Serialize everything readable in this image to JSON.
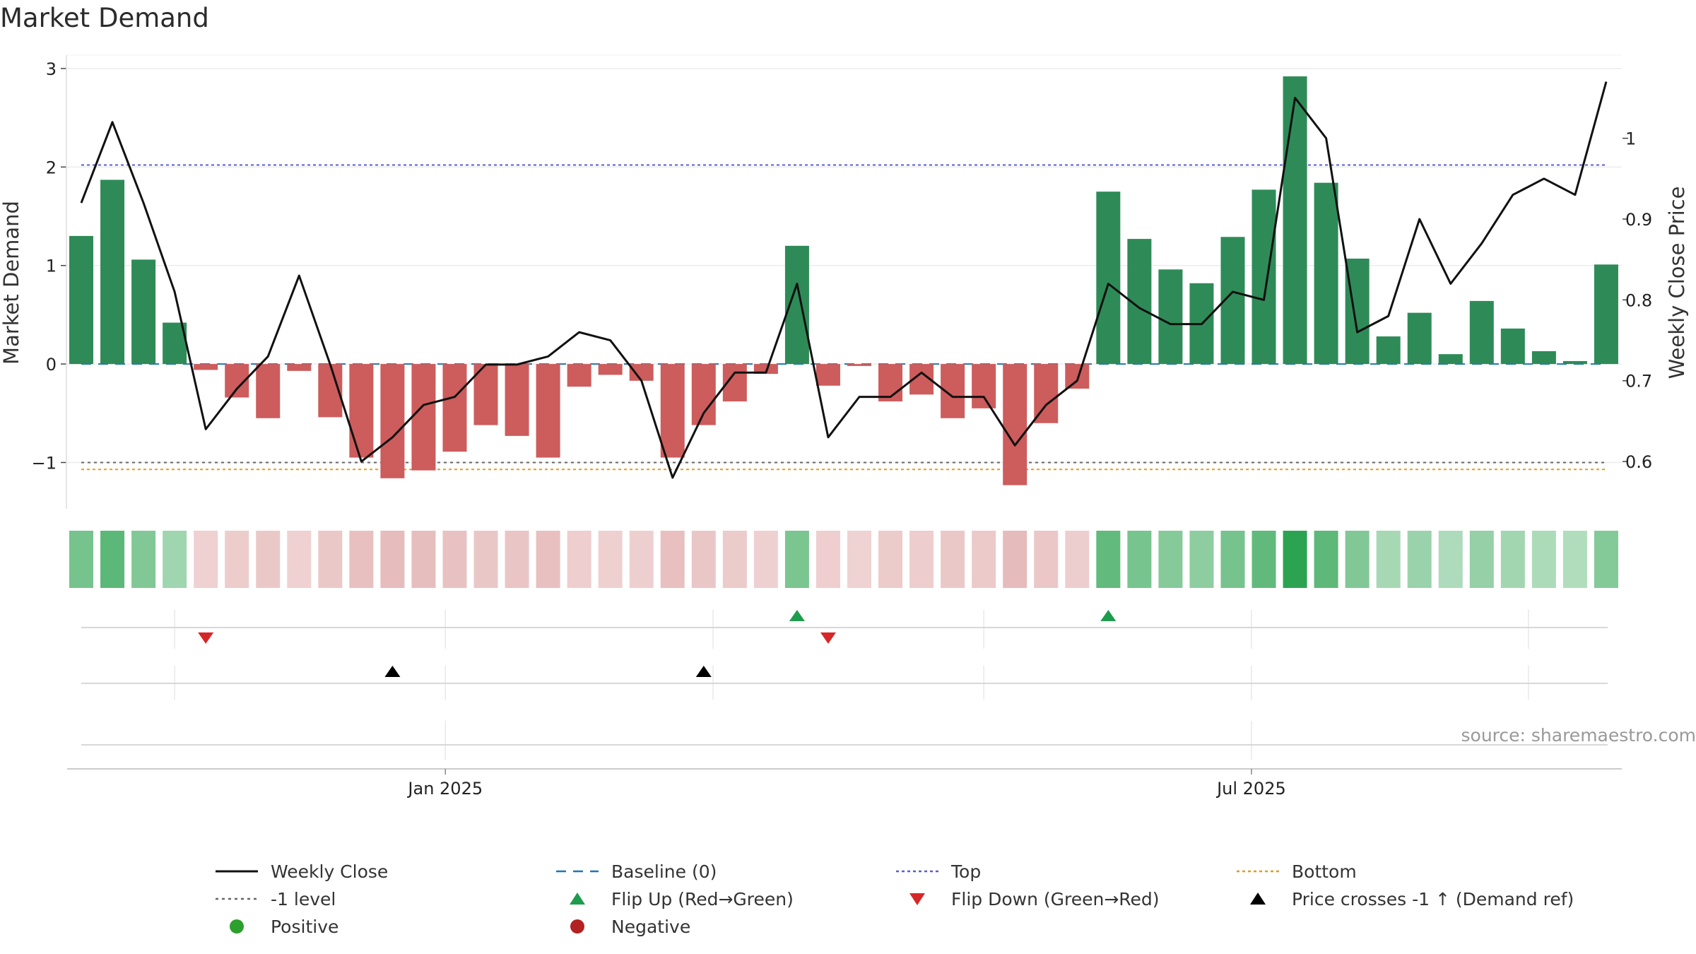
{
  "title": "Market Demand",
  "source": "source: sharemaestro.com",
  "chart_data": {
    "type": "bar",
    "x_ticks": [
      {
        "label": "Jan 2025",
        "week": 11.7
      },
      {
        "label": "Jul 2025",
        "week": 37.6
      }
    ],
    "weeks": 51,
    "demand": [
      1.3,
      1.87,
      1.06,
      0.42,
      -0.06,
      -0.34,
      -0.55,
      -0.07,
      -0.54,
      -0.95,
      -1.16,
      -1.08,
      -0.89,
      -0.62,
      -0.73,
      -0.95,
      -0.23,
      -0.11,
      -0.17,
      -0.95,
      -0.62,
      -0.38,
      -0.1,
      1.2,
      -0.22,
      -0.02,
      -0.38,
      -0.31,
      -0.55,
      -0.45,
      -1.23,
      -0.6,
      -0.25,
      1.75,
      1.27,
      0.96,
      0.82,
      1.29,
      1.77,
      2.92,
      1.84,
      1.07,
      0.28,
      0.52,
      0.1,
      0.64,
      0.36,
      0.13,
      0.03,
      1.01
    ],
    "close": [
      0.92,
      1.02,
      0.92,
      0.81,
      0.64,
      0.69,
      0.73,
      0.83,
      0.72,
      0.6,
      0.63,
      0.67,
      0.68,
      0.72,
      0.72,
      0.73,
      0.76,
      0.75,
      0.7,
      0.58,
      0.66,
      0.71,
      0.71,
      0.82,
      0.63,
      0.68,
      0.68,
      0.71,
      0.68,
      0.68,
      0.62,
      0.67,
      0.7,
      0.82,
      0.79,
      0.77,
      0.77,
      0.81,
      0.8,
      1.05,
      1.0,
      0.76,
      0.78,
      0.9,
      0.82,
      0.87,
      0.93,
      0.95,
      0.93,
      1.07
    ],
    "left_axis": {
      "label": "Market Demand",
      "ylim": [
        -1.47,
        3.1
      ],
      "ticks": [
        -1,
        0,
        1,
        2,
        3
      ]
    },
    "right_axis": {
      "label": "Weekly Close Price",
      "ylim": [
        0.5415,
        1.0985
      ],
      "ticks": [
        0.6,
        0.7,
        0.8,
        0.9,
        1
      ]
    },
    "levels": {
      "baseline": 0,
      "top": 2.02,
      "bottom": -1.07,
      "minus_one": -1
    },
    "flip_up_weeks": [
      23,
      33
    ],
    "flip_down_weeks": [
      4,
      24
    ],
    "price_cross_weeks": [
      10,
      20
    ],
    "colors": {
      "positive_bar": "#2e8b57",
      "negative_bar": "#cd5c5c",
      "close_line": "#111111",
      "baseline": "#1f77b4",
      "top": "#5b5bd6",
      "bottom": "#e69a1a",
      "minus_one": "#666666",
      "flip_up": "#1e9c4e",
      "flip_down": "#d62728",
      "price_cross": "#000000",
      "positive_dot": "#2ca02c",
      "negative_dot": "#b22222"
    },
    "legend": [
      {
        "label": "Weekly Close",
        "kind": "line",
        "color": "#111111",
        "dash": ""
      },
      {
        "label": "Baseline (0)",
        "kind": "line",
        "color": "#1f77b4",
        "dash": "14 10"
      },
      {
        "label": "Top",
        "kind": "line",
        "color": "#5b5bd6",
        "dash": "4 4"
      },
      {
        "label": "Bottom",
        "kind": "line",
        "color": "#e69a1a",
        "dash": "4 4"
      },
      {
        "label": "-1 level",
        "kind": "line",
        "color": "#666666",
        "dash": "4 5"
      },
      {
        "label": "Flip Up (Red→Green)",
        "kind": "tri-up",
        "color": "#1e9c4e"
      },
      {
        "label": "Flip Down (Green→Red)",
        "kind": "tri-down",
        "color": "#d62728"
      },
      {
        "label": "Price crosses -1 ↑ (Demand ref)",
        "kind": "tri-up",
        "color": "#000000"
      },
      {
        "label": "Positive",
        "kind": "dot",
        "color": "#2ca02c"
      },
      {
        "label": "Negative",
        "kind": "dot",
        "color": "#b22222"
      }
    ]
  }
}
